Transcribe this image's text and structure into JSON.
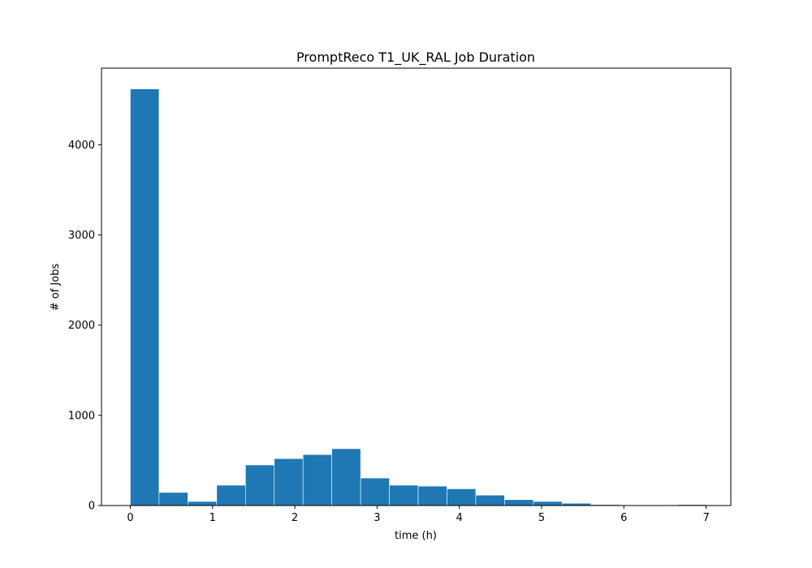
{
  "chart_data": {
    "type": "bar",
    "title": "PromptReco T1_UK_RAL Job Duration",
    "xlabel": "time (h)",
    "ylabel": "# of Jobs",
    "xlim": [
      -0.35,
      7.3
    ],
    "ylim": [
      0,
      4850
    ],
    "xticks": [
      0,
      1,
      2,
      3,
      4,
      5,
      6,
      7
    ],
    "yticks": [
      0,
      1000,
      2000,
      3000,
      4000
    ],
    "bin_width": 0.35,
    "bins": [
      {
        "start": 0.0,
        "count": 4620
      },
      {
        "start": 0.35,
        "count": 145
      },
      {
        "start": 0.7,
        "count": 45
      },
      {
        "start": 1.05,
        "count": 225
      },
      {
        "start": 1.4,
        "count": 450
      },
      {
        "start": 1.75,
        "count": 520
      },
      {
        "start": 2.1,
        "count": 565
      },
      {
        "start": 2.45,
        "count": 630
      },
      {
        "start": 2.8,
        "count": 305
      },
      {
        "start": 3.15,
        "count": 225
      },
      {
        "start": 3.5,
        "count": 215
      },
      {
        "start": 3.85,
        "count": 185
      },
      {
        "start": 4.2,
        "count": 115
      },
      {
        "start": 4.55,
        "count": 65
      },
      {
        "start": 4.9,
        "count": 45
      },
      {
        "start": 5.25,
        "count": 25
      },
      {
        "start": 5.6,
        "count": 10
      },
      {
        "start": 5.95,
        "count": 4
      },
      {
        "start": 6.3,
        "count": 3
      },
      {
        "start": 6.65,
        "count": 10
      }
    ],
    "bar_color": "#1f77b4",
    "grid": false,
    "legend": "none"
  }
}
